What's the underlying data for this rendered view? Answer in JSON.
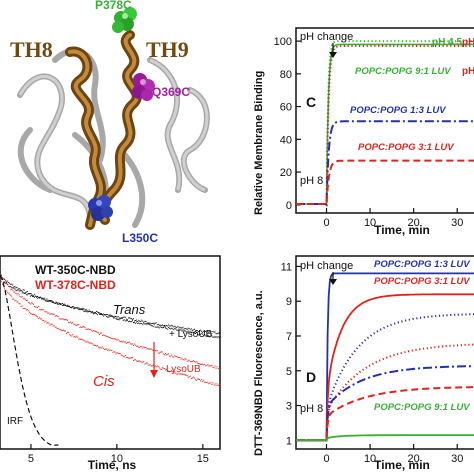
{
  "colors": {
    "black": "#111111",
    "red": "#e0231c",
    "blue": "#2233aa",
    "green": "#38b038",
    "purple": "#a020a0",
    "helix": "#8a5a1e",
    "protein": "#9a9a9a"
  },
  "structure": {
    "labels": {
      "th8": "TH8",
      "th9": "TH9",
      "p378c": "P378C",
      "q369c": "Q369C",
      "l350c": "L350C"
    }
  },
  "chart_data": [
    {
      "type": "line",
      "panel": "top-right",
      "title": "",
      "xlabel": "Time, min",
      "ylabel": "Relative Membrane Binding",
      "panel_letter": "C",
      "xlim": [
        -7,
        35
      ],
      "ylim": [
        -5,
        108
      ],
      "xticks": [
        0,
        10,
        20,
        30
      ],
      "yticks": [
        0,
        20,
        40,
        60,
        80,
        100
      ],
      "annotations": {
        "ph_change": "pH change",
        "ph8": "pH 8",
        "ph45": "pH 4.5",
        "ph_cut": "pH"
      },
      "series": [
        {
          "name": "POPC:POPG 9:1 LUV",
          "color": "#38b038",
          "style": "dotted",
          "plateau": 100
        },
        {
          "name": "pH 4.5",
          "color": "#38b038",
          "style": "solid",
          "plateau": 98
        },
        {
          "name": "",
          "color": "#e0231c",
          "style": "dotted",
          "plateau": 97
        },
        {
          "name": "POPC:POPG 1:3 LUV",
          "color": "#2233aa",
          "style": "dashdot",
          "plateau": 51
        },
        {
          "name": "POPC:POPG 3:1 LUV",
          "color": "#e0231c",
          "style": "dashed",
          "plateau": 27
        }
      ]
    },
    {
      "type": "line",
      "panel": "bottom-left",
      "title": "",
      "xlabel": "Time, ns",
      "ylabel": "",
      "xlim": [
        3.2,
        16
      ],
      "xticks": [
        5,
        10,
        15
      ],
      "legend": [
        "WT-350C-NBD",
        "WT-378C-NBD"
      ],
      "annotations": {
        "trans": "Trans",
        "cis": "Cis",
        "lysoub_plus": "+ LysoUB",
        "lysoub": "LysoUB",
        "irf": "IRF"
      },
      "series": [
        {
          "name": "WT-350C-NBD",
          "color": "#111111",
          "start": 0.92,
          "end": 0.58
        },
        {
          "name": "",
          "color": "#111111",
          "start": 0.9,
          "end": 0.6
        },
        {
          "name": "WT-378C-NBD",
          "color": "#e0231c",
          "start": 0.93,
          "end": 0.42
        },
        {
          "name": "",
          "color": "#e0231c",
          "start": 0.9,
          "end": 0.33
        },
        {
          "name": "IRF",
          "color": "#111111",
          "style": "dashed"
        }
      ]
    },
    {
      "type": "line",
      "panel": "bottom-right",
      "title": "",
      "xlabel": "Time, min",
      "ylabel": "DTT-369NBD Fluorescence, a.u.",
      "panel_letter": "D",
      "xlim": [
        -7,
        35
      ],
      "ylim": [
        0.5,
        11.6
      ],
      "xticks": [
        0,
        10,
        20,
        30
      ],
      "yticks": [
        1,
        3,
        5,
        7,
        9,
        11
      ],
      "annotations": {
        "ph_change": "pH change",
        "ph8": "pH 8"
      },
      "series": [
        {
          "name": "POPC:POPG 1:3 LUV",
          "color": "#2233aa",
          "style": "solid",
          "plateau": 10.6
        },
        {
          "name": "POPC:POPG 3:1 LUV",
          "color": "#e0231c",
          "style": "solid",
          "plateau": 9.4
        },
        {
          "name": "",
          "color": "#2233aa",
          "style": "dotted",
          "plateau": 8.3
        },
        {
          "name": "",
          "color": "#e0231c",
          "style": "dotted",
          "plateau": 6.6
        },
        {
          "name": "",
          "color": "#2233aa",
          "style": "dashdot",
          "plateau": 5.3
        },
        {
          "name": "",
          "color": "#e0231c",
          "style": "dashed",
          "plateau": 4.1
        },
        {
          "name": "POPC:POPG 9:1 LUV",
          "color": "#38b038",
          "style": "solid",
          "plateau": 1.3
        }
      ]
    }
  ]
}
